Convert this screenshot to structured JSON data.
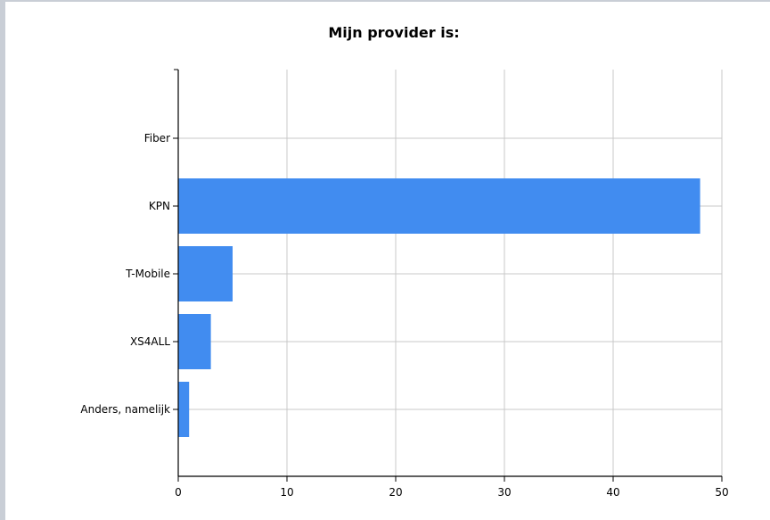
{
  "chart_data": {
    "type": "bar",
    "orientation": "horizontal",
    "title": "Mijn provider is:",
    "categories": [
      "Fiber",
      "KPN",
      "T-Mobile",
      "XS4ALL",
      "Anders, namelijk"
    ],
    "values": [
      0,
      48,
      5,
      3,
      1
    ],
    "xlim": [
      0,
      50
    ],
    "xticks": [
      0,
      10,
      20,
      30,
      40,
      50
    ],
    "grid": true,
    "bar_color": "#418cf0"
  }
}
